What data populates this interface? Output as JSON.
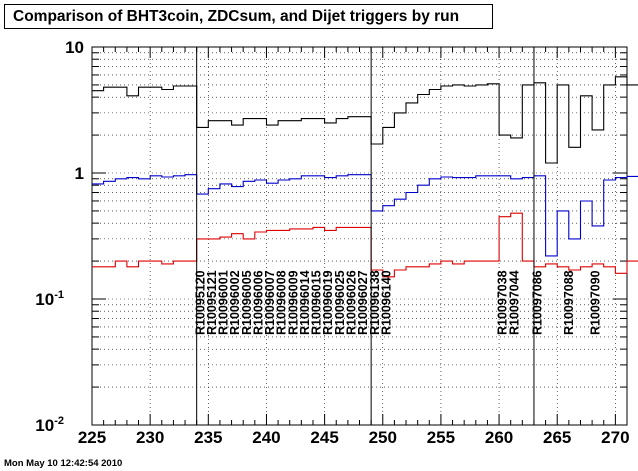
{
  "title": "Comparison of BHT3coin, ZDCsum, and Dijet triggers by run",
  "footer": "Mon May 10 12:42:54 2010",
  "chart_data": {
    "type": "line",
    "step": true,
    "title": "Comparison of BHT3coin, ZDCsum, and Dijet triggers by run",
    "xlabel": "",
    "ylabel": "",
    "xlim": [
      225,
      271
    ],
    "ylim": [
      0.01,
      10
    ],
    "yscale": "log",
    "grid": true,
    "x_ticks": [
      225,
      230,
      235,
      240,
      245,
      250,
      255,
      260,
      265,
      270
    ],
    "y_ticks": [
      {
        "value": 10,
        "label": "10"
      },
      {
        "value": 1,
        "label": "1"
      },
      {
        "value": 0.1,
        "label": "10",
        "exp": "-1"
      },
      {
        "value": 0.01,
        "label": "10",
        "exp": "-2"
      }
    ],
    "bin_start": 225,
    "series": [
      {
        "color": "#000000",
        "values": [
          4.5,
          4.8,
          4.8,
          4.1,
          4.8,
          4.8,
          4.6,
          4.9,
          4.9,
          2.3,
          2.6,
          2.6,
          2.4,
          2.7,
          2.7,
          2.4,
          2.6,
          2.6,
          2.7,
          2.7,
          2.5,
          2.7,
          2.8,
          2.8,
          1.7,
          2.3,
          3.0,
          3.6,
          4.2,
          4.6,
          4.9,
          5.0,
          4.9,
          5.0,
          5.1,
          2.0,
          1.9,
          5.0,
          5.2,
          1.2,
          5.0,
          1.6,
          4.1,
          2.2,
          5.0,
          5.8,
          5.0
        ]
      },
      {
        "color": "#0000cc",
        "values": [
          0.82,
          0.86,
          0.9,
          0.92,
          0.9,
          0.95,
          0.93,
          0.95,
          0.97,
          0.68,
          0.75,
          0.82,
          0.78,
          0.86,
          0.88,
          0.83,
          0.88,
          0.9,
          0.95,
          0.95,
          0.92,
          0.95,
          0.97,
          0.97,
          0.5,
          0.55,
          0.62,
          0.7,
          0.8,
          0.9,
          0.93,
          0.92,
          0.92,
          0.95,
          0.95,
          0.95,
          0.9,
          0.92,
          0.95,
          0.22,
          0.5,
          0.3,
          0.6,
          0.38,
          0.88,
          0.92,
          0.94
        ]
      },
      {
        "color": "#dd0000",
        "values": [
          0.18,
          0.18,
          0.2,
          0.18,
          0.2,
          0.2,
          0.19,
          0.2,
          0.2,
          0.3,
          0.3,
          0.31,
          0.33,
          0.3,
          0.34,
          0.35,
          0.35,
          0.36,
          0.36,
          0.37,
          0.35,
          0.37,
          0.37,
          0.37,
          0.17,
          0.15,
          0.17,
          0.18,
          0.18,
          0.19,
          0.2,
          0.19,
          0.2,
          0.2,
          0.2,
          0.45,
          0.48,
          0.2,
          0.18,
          0.19,
          0.18,
          0.17,
          0.18,
          0.19,
          0.18,
          0.16,
          0.2
        ]
      }
    ],
    "vlines": [
      234,
      249,
      263
    ],
    "annotations": [
      {
        "x": 235,
        "text": "R10095120"
      },
      {
        "x": 236,
        "text": "R10095121"
      },
      {
        "x": 237,
        "text": "R10096001"
      },
      {
        "x": 238,
        "text": "R10096002"
      },
      {
        "x": 239,
        "text": "R10096005"
      },
      {
        "x": 240,
        "text": "R10096006"
      },
      {
        "x": 241,
        "text": "R10096007"
      },
      {
        "x": 242,
        "text": "R10096008"
      },
      {
        "x": 243,
        "text": "R10096009"
      },
      {
        "x": 244,
        "text": "R10096014"
      },
      {
        "x": 245,
        "text": "R10096015"
      },
      {
        "x": 246,
        "text": "R10096019"
      },
      {
        "x": 247,
        "text": "R10096025"
      },
      {
        "x": 248,
        "text": "R10096026"
      },
      {
        "x": 249,
        "text": "R10096027"
      },
      {
        "x": 250,
        "text": "R10096138"
      },
      {
        "x": 251,
        "text": "R10096140"
      },
      {
        "x": 261,
        "text": "R10097038"
      },
      {
        "x": 262,
        "text": "R10097044"
      },
      {
        "x": 264,
        "text": "R10097086"
      },
      {
        "x": 266.7,
        "text": "R10097088"
      },
      {
        "x": 269,
        "text": "R10097090"
      }
    ]
  }
}
